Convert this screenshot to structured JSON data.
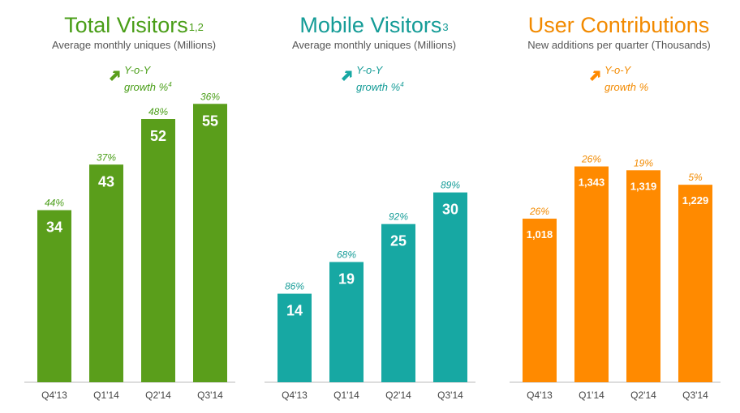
{
  "panels": [
    {
      "title": "Total Visitors",
      "title_footnote": "1,2",
      "subtitle": "Average monthly uniques (Millions)",
      "legend_line1": "Y-o-Y",
      "legend_line2": "growth %",
      "legend_footnote": "4",
      "color": "#5a9e1b",
      "text_color": "#4a9e18"
    },
    {
      "title": "Mobile Visitors",
      "title_footnote": "3",
      "subtitle": "Average monthly uniques (Millions)",
      "legend_line1": "Y-o-Y",
      "legend_line2": "growth %",
      "legend_footnote": "4",
      "color": "#17a8a3",
      "text_color": "#159c97"
    },
    {
      "title": "User Contributions",
      "title_footnote": "",
      "subtitle": "New additions per quarter (Thousands)",
      "legend_line1": "Y-o-Y",
      "legend_line2": "growth %",
      "legend_footnote": "",
      "color": "#ff8a00",
      "text_color": "#f28a00"
    }
  ],
  "chart_data": [
    {
      "type": "bar",
      "title": "Total Visitors",
      "unit": "Millions",
      "categories": [
        "Q4'13",
        "Q1'14",
        "Q2'14",
        "Q3'14"
      ],
      "values": [
        34,
        43,
        52,
        55
      ],
      "value_labels": [
        "34",
        "43",
        "52",
        "55"
      ],
      "growth_labels": [
        "44%",
        "37%",
        "48%",
        "36%"
      ],
      "ylim": [
        0,
        60
      ]
    },
    {
      "type": "bar",
      "title": "Mobile Visitors",
      "unit": "Millions",
      "categories": [
        "Q4'13",
        "Q1'14",
        "Q2'14",
        "Q3'14"
      ],
      "values": [
        14,
        19,
        25,
        30
      ],
      "value_labels": [
        "14",
        "19",
        "25",
        "30"
      ],
      "growth_labels": [
        "86%",
        "68%",
        "92%",
        "89%"
      ],
      "ylim": [
        0,
        48
      ]
    },
    {
      "type": "bar",
      "title": "User Contributions",
      "unit": "Thousands",
      "categories": [
        "Q4'13",
        "Q1'14",
        "Q2'14",
        "Q3'14"
      ],
      "values": [
        1018,
        1343,
        1319,
        1229
      ],
      "value_labels": [
        "1,018",
        "1,343",
        "1,319",
        "1,229"
      ],
      "growth_labels": [
        "26%",
        "26%",
        "19%",
        "5%"
      ],
      "ylim": [
        0,
        1890
      ]
    }
  ]
}
